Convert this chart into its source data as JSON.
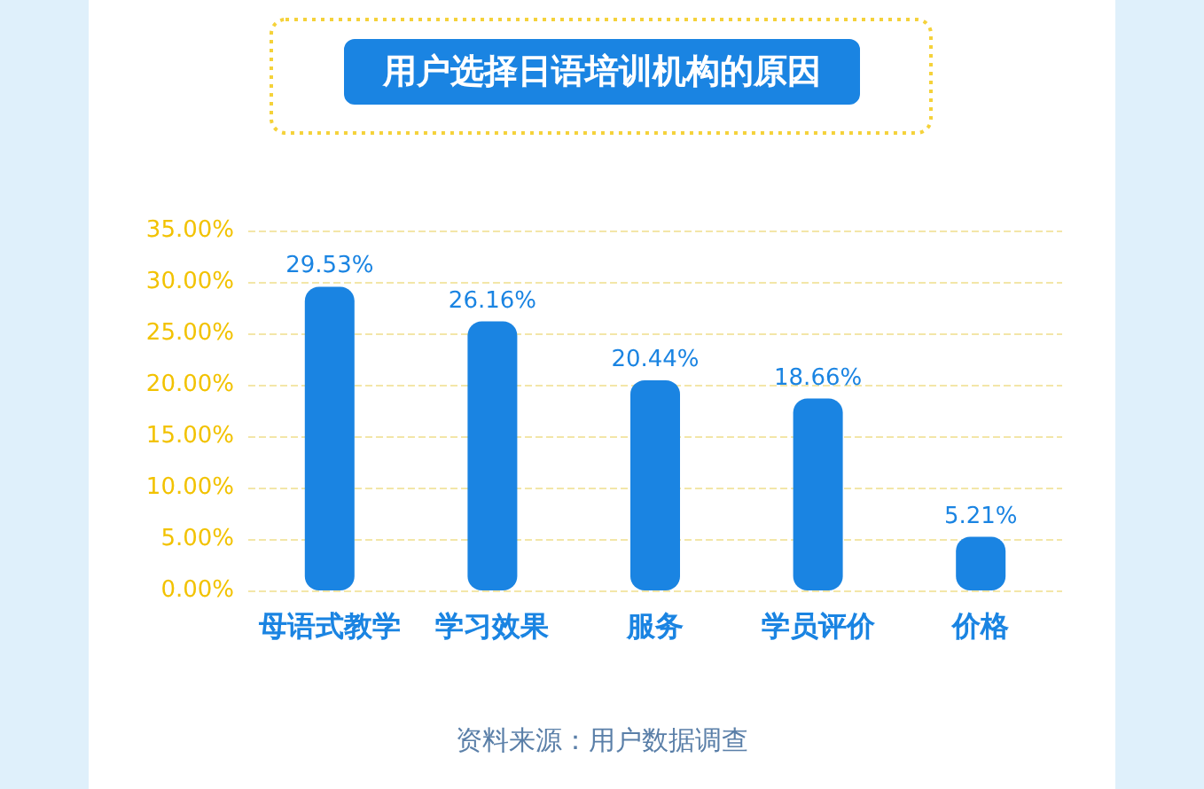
{
  "chart_data": {
    "type": "bar",
    "title": "用户选择日语培训机构的原因",
    "categories": [
      "母语式教学",
      "学习效果",
      "服务",
      "学员评价",
      "价格"
    ],
    "values": [
      29.53,
      26.16,
      20.44,
      18.66,
      5.21
    ],
    "color": "#1a84e2",
    "value_labels": [
      "29.53%",
      "26.16%",
      "20.44%",
      "18.66%",
      "5.21%"
    ],
    "ylim": [
      0,
      35
    ],
    "yticks": [
      {
        "value": 0,
        "label": "0.00%"
      },
      {
        "value": 5,
        "label": "5.00%"
      },
      {
        "value": 10,
        "label": "10.00%"
      },
      {
        "value": 15,
        "label": "15.00%"
      },
      {
        "value": 20,
        "label": "20.00%"
      },
      {
        "value": 25,
        "label": "25.00%"
      },
      {
        "value": 30,
        "label": "30.00%"
      },
      {
        "value": 35,
        "label": "35.00%"
      }
    ],
    "grid": "y",
    "annotations": [
      "资料来源：用户数据调查"
    ]
  }
}
